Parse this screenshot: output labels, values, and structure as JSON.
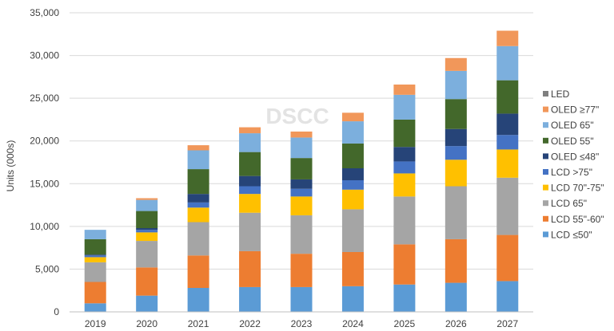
{
  "chart_data": {
    "type": "bar",
    "stacked": true,
    "ylabel": "Units (000s)",
    "xlabel": "",
    "ylim": [
      0,
      35000
    ],
    "yticks": [
      0,
      5000,
      10000,
      15000,
      20000,
      25000,
      30000,
      35000
    ],
    "ytick_labels": [
      "0",
      "5,000",
      "10,000",
      "15,000",
      "20,000",
      "25,000",
      "30,000",
      "35,000"
    ],
    "watermark": "DSCC",
    "grid": "horizontal",
    "legend_position": "right",
    "categories": [
      "2019",
      "2020",
      "2021",
      "2022",
      "2023",
      "2024",
      "2025",
      "2026",
      "2027"
    ],
    "series": [
      {
        "name": "LCD  ≤50\"",
        "color": "#5b9bd5",
        "values": [
          1000,
          1900,
          2800,
          2900,
          2900,
          3000,
          3200,
          3400,
          3600
        ]
      },
      {
        "name": "LCD 55\"-60\"",
        "color": "#ed7d31",
        "values": [
          2500,
          3300,
          3800,
          4200,
          3900,
          4000,
          4700,
          5100,
          5400
        ]
      },
      {
        "name": "LCD 65\"",
        "color": "#a5a5a5",
        "values": [
          2300,
          3100,
          3900,
          4500,
          4500,
          5000,
          5600,
          6200,
          6700
        ]
      },
      {
        "name": "LCD 70\"-75\"",
        "color": "#ffc000",
        "values": [
          600,
          1000,
          1700,
          2200,
          2200,
          2300,
          2700,
          3100,
          3300
        ]
      },
      {
        "name": "LCD >75\"",
        "color": "#4472c4",
        "values": [
          200,
          300,
          600,
          900,
          900,
          1100,
          1400,
          1600,
          1700
        ]
      },
      {
        "name": "OLED  ≤48\"",
        "color": "#264478",
        "values": [
          100,
          200,
          1000,
          1200,
          1100,
          1400,
          1700,
          2000,
          2500
        ]
      },
      {
        "name": "OLED 55\"",
        "color": "#43682b",
        "values": [
          1800,
          2000,
          2900,
          2800,
          2500,
          2900,
          3200,
          3500,
          3900
        ]
      },
      {
        "name": "OLED 65\"",
        "color": "#7cafdd",
        "values": [
          1100,
          1300,
          2200,
          2200,
          2400,
          2600,
          2900,
          3300,
          4000
        ]
      },
      {
        "name": "OLED ≥77\"",
        "color": "#f1975a",
        "values": [
          0,
          200,
          600,
          700,
          700,
          1000,
          1200,
          1500,
          1800
        ]
      },
      {
        "name": "LED",
        "color": "#7f7f7f",
        "values": [
          0,
          0,
          0,
          0,
          0,
          0,
          0,
          0,
          0
        ]
      }
    ]
  }
}
